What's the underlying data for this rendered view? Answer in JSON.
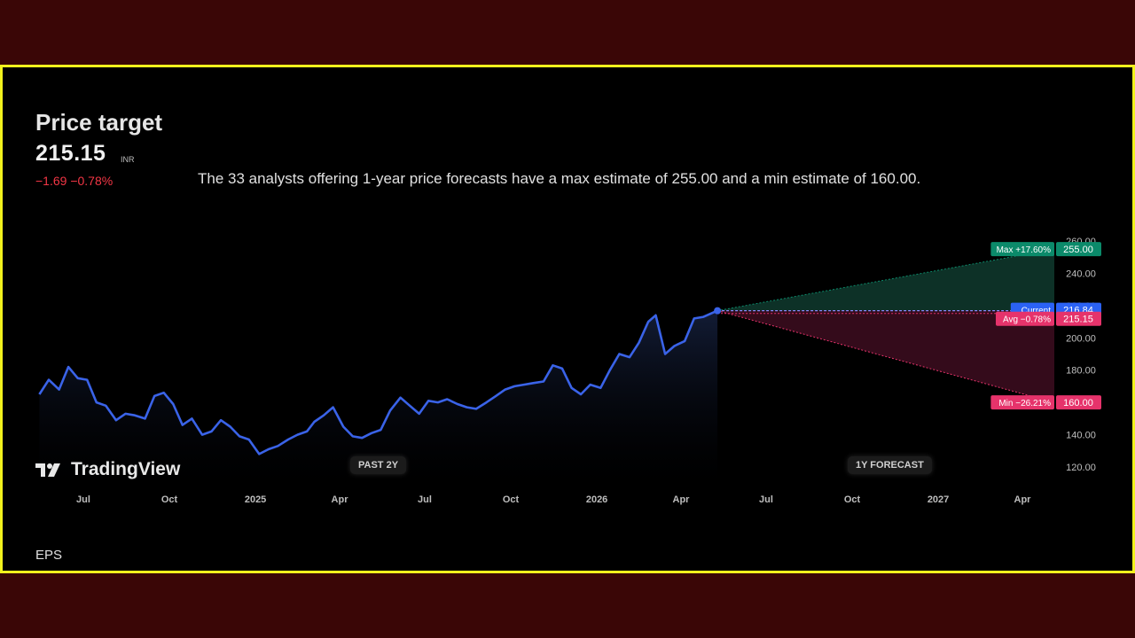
{
  "header": {
    "title": "Price target",
    "price": "215.15",
    "currency": "INR",
    "change": "−1.69 −0.78%",
    "description": "The 33 analysts offering 1-year price forecasts have a max estimate of 255.00 and a min estimate of 160.00."
  },
  "labels": {
    "past": "PAST 2Y",
    "forecast": "1Y FORECAST",
    "logo_text": "TradingView",
    "footer": "EPS"
  },
  "colors": {
    "line": "#3a63e8",
    "max": "#0b8a6a",
    "current": "#2b62f5",
    "avg": "#e6336b",
    "min": "#e6336b",
    "negative": "#f23645"
  },
  "chart_data": {
    "type": "line",
    "ylim": [
      110,
      262
    ],
    "yticks": [
      120,
      140,
      160,
      180,
      200,
      220,
      240,
      260
    ],
    "ytick_labels": [
      "120.00",
      "140.00",
      "160.00",
      "180.00",
      "200.00",
      "220.00",
      "240.00",
      "260.00"
    ],
    "xticks": [
      {
        "label": "Jul",
        "date": "2024-07-01"
      },
      {
        "label": "Oct",
        "date": "2024-10-01"
      },
      {
        "label": "2025",
        "date": "2025-01-01"
      },
      {
        "label": "Apr",
        "date": "2025-04-01"
      },
      {
        "label": "Jul",
        "date": "2025-07-01"
      },
      {
        "label": "Oct",
        "date": "2025-10-01"
      },
      {
        "label": "2026",
        "date": "2026-01-01"
      },
      {
        "label": "Apr",
        "date": "2026-04-01"
      },
      {
        "label": "Jul",
        "date": "2026-07-01"
      },
      {
        "label": "Oct",
        "date": "2026-10-01"
      },
      {
        "label": "2027",
        "date": "2027-01-01"
      },
      {
        "label": "Apr",
        "date": "2027-04-01"
      }
    ],
    "series": [
      {
        "x": [
          "2024-05-15",
          "2024-05-25",
          "2024-06-05",
          "2024-06-15",
          "2024-06-25",
          "2024-07-05",
          "2024-07-15",
          "2024-07-25",
          "2024-08-05",
          "2024-08-15",
          "2024-08-25",
          "2024-09-05",
          "2024-09-15",
          "2024-09-25",
          "2024-10-05",
          "2024-10-15",
          "2024-10-25",
          "2024-11-05",
          "2024-11-15",
          "2024-11-25",
          "2024-12-05",
          "2024-12-15",
          "2024-12-25",
          "2025-01-05",
          "2025-01-15",
          "2025-01-25",
          "2025-02-05",
          "2025-02-15",
          "2025-02-25",
          "2025-03-05",
          "2025-03-15",
          "2025-03-25",
          "2025-04-05",
          "2025-04-15",
          "2025-04-25",
          "2025-05-05",
          "2025-05-15",
          "2025-05-25",
          "2025-06-05",
          "2025-06-15",
          "2025-06-25",
          "2025-07-05",
          "2025-07-15",
          "2025-07-25",
          "2025-08-05",
          "2025-08-15",
          "2025-08-25",
          "2025-09-05",
          "2025-09-15",
          "2025-09-25",
          "2025-10-05",
          "2025-10-15",
          "2025-10-25",
          "2025-11-05",
          "2025-11-15",
          "2025-11-25",
          "2025-12-05",
          "2025-12-15",
          "2025-12-25",
          "2026-01-05",
          "2026-01-15",
          "2026-01-25",
          "2026-02-05",
          "2026-02-15",
          "2026-02-25",
          "2026-03-05",
          "2026-03-15",
          "2026-03-25",
          "2026-04-05",
          "2026-04-15",
          "2026-04-25",
          "2026-05-10"
        ],
        "values": [
          165,
          174,
          168,
          182,
          175,
          174,
          160,
          158,
          149,
          153,
          152,
          150,
          164,
          166,
          159,
          146,
          150,
          140,
          142,
          149,
          145,
          139,
          137,
          128,
          131,
          133,
          137,
          140,
          142,
          148,
          152,
          157,
          145,
          139,
          138,
          141,
          143,
          155,
          163,
          158,
          153,
          161,
          160,
          162,
          159,
          157,
          156,
          160,
          164,
          168,
          170,
          171,
          172,
          173,
          183,
          181,
          169,
          165,
          171,
          169,
          180,
          190,
          188,
          197,
          210,
          214,
          190,
          195,
          198,
          212,
          213,
          216.84
        ]
      }
    ],
    "forecast": {
      "start_date": "2026-05-10",
      "end_date": "2027-05-10",
      "current": 216.84,
      "max": 255.0,
      "avg": 215.15,
      "min": 160.0,
      "labels": {
        "current": "Current",
        "max": "Max +17.60%",
        "avg": "Avg −0.78%",
        "min": "Min −26.21%",
        "current_value": "216.84",
        "max_value": "255.00",
        "avg_value": "215.15",
        "min_value": "160.00"
      }
    }
  }
}
